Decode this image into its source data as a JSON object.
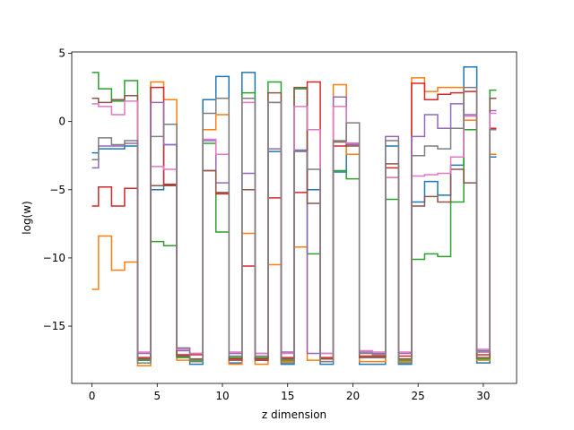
{
  "chart_data": {
    "type": "step",
    "xlabel": "z dimension",
    "ylabel": "log(w)",
    "x": [
      0,
      1,
      2,
      3,
      4,
      5,
      6,
      7,
      8,
      9,
      10,
      11,
      12,
      13,
      14,
      15,
      16,
      17,
      18,
      19,
      20,
      21,
      22,
      23,
      24,
      25,
      26,
      27,
      28,
      29,
      30,
      31
    ],
    "xlim": [
      -1.55,
      32.55
    ],
    "ylim": [
      -19.2,
      5.1
    ],
    "xticks": [
      0,
      5,
      10,
      15,
      20,
      25,
      30
    ],
    "yticks": [
      {
        "value": -15,
        "label": "−15"
      },
      {
        "value": -10,
        "label": "−10"
      },
      {
        "value": -5,
        "label": "−5"
      },
      0,
      5
    ],
    "grid": false,
    "series": [
      {
        "color": "#1f77b4",
        "values": [
          -2.3,
          -2.0,
          -2.0,
          -1.8,
          -17.5,
          -5.0,
          -1.7,
          -17.2,
          -17.8,
          1.6,
          3.3,
          -17.7,
          3.6,
          -17.5,
          -2.2,
          -17.8,
          -2.1,
          -5.0,
          -17.8,
          -3.7,
          -1.6,
          -17.8,
          -17.8,
          -1.8,
          -17.8,
          -5.9,
          -4.4,
          -5.4,
          -3.2,
          4.0,
          -17.7,
          -2.6
        ]
      },
      {
        "color": "#ff7f0e",
        "values": [
          -12.3,
          -8.4,
          -10.9,
          -10.3,
          -17.9,
          2.9,
          1.6,
          -17.5,
          -17.6,
          -0.6,
          0.5,
          -17.8,
          -8.2,
          -17.8,
          -10.5,
          -17.6,
          -9.2,
          -17.5,
          -17.6,
          2.7,
          -2.4,
          -17.6,
          -17.6,
          -4.1,
          -17.6,
          3.2,
          2.2,
          2.5,
          2.5,
          0.1,
          -17.5,
          -2.4
        ]
      },
      {
        "color": "#2ca02c",
        "values": [
          3.6,
          2.4,
          1.5,
          3.0,
          -17.5,
          -8.8,
          -9.1,
          -17.3,
          -17.5,
          -1.6,
          -8.1,
          -17.3,
          2.1,
          -17.3,
          2.9,
          -17.5,
          2.4,
          -9.7,
          -17.4,
          -3.6,
          -4.2,
          -17.3,
          -17.3,
          -5.7,
          -17.5,
          -10.1,
          -9.7,
          -9.9,
          -5.9,
          -0.6,
          -17.4,
          2.3
        ]
      },
      {
        "color": "#d62728",
        "values": [
          -6.2,
          -4.8,
          -6.2,
          -4.9,
          -17.3,
          2.5,
          -4.6,
          -17.1,
          -17.1,
          -3.6,
          -5.3,
          -17.4,
          -10.6,
          -17.4,
          -5.6,
          -17.3,
          -5.2,
          2.9,
          -17.3,
          -1.8,
          -1.6,
          -17.2,
          -17.2,
          -3.4,
          -17.2,
          2.8,
          1.6,
          2.0,
          2.1,
          2.2,
          -17.1,
          -0.5
        ]
      },
      {
        "color": "#9467bd",
        "values": [
          -3.4,
          -1.8,
          -1.8,
          -1.6,
          -17.0,
          1.4,
          -1.7,
          -16.8,
          -17.0,
          -1.4,
          -4.5,
          -17.0,
          -3.8,
          -17.0,
          -2.0,
          -16.9,
          -2.1,
          -17.0,
          -17.0,
          1.8,
          -1.7,
          -16.9,
          -17.0,
          -1.1,
          -17.0,
          -1.1,
          0.5,
          -0.5,
          1.3,
          0.5,
          -16.8,
          0.8
        ]
      },
      {
        "color": "#8c564b",
        "values": [
          1.7,
          1.4,
          1.6,
          1.9,
          -17.4,
          -4.7,
          -4.7,
          -17.2,
          -17.4,
          -3.6,
          -5.2,
          -17.5,
          -5.0,
          -17.5,
          2.1,
          -17.4,
          2.5,
          -6.0,
          -17.4,
          -1.5,
          -1.8,
          -17.3,
          -17.3,
          -3.1,
          -17.4,
          -6.2,
          -5.5,
          -5.9,
          -3.5,
          -4.5,
          -17.3,
          1.7
        ]
      },
      {
        "color": "#e377c2",
        "values": [
          1.3,
          1.1,
          0.5,
          1.5,
          -16.9,
          -3.3,
          -3.5,
          -16.7,
          -17.0,
          -1.3,
          -2.4,
          -16.9,
          1.4,
          -17.0,
          1.4,
          -17.0,
          1.1,
          -0.6,
          -17.0,
          1.1,
          -1.6,
          -16.8,
          -16.9,
          -4.1,
          -16.9,
          -4.0,
          -3.9,
          -3.8,
          -2.6,
          0.4,
          -16.7,
          0.6
        ]
      },
      {
        "color": "#7f7f7f",
        "values": [
          -2.8,
          -1.2,
          -1.7,
          -1.4,
          -17.7,
          -1.1,
          -0.2,
          -16.6,
          -17.6,
          0.6,
          1.7,
          -17.2,
          1.7,
          -17.2,
          1.4,
          -17.7,
          -2.2,
          -3.5,
          -17.6,
          -1.4,
          -0.1,
          -17.0,
          -17.1,
          -1.4,
          -17.7,
          -2.5,
          -1.8,
          -2.0,
          -0.5,
          2.5,
          -16.9,
          -0.6
        ]
      }
    ]
  }
}
